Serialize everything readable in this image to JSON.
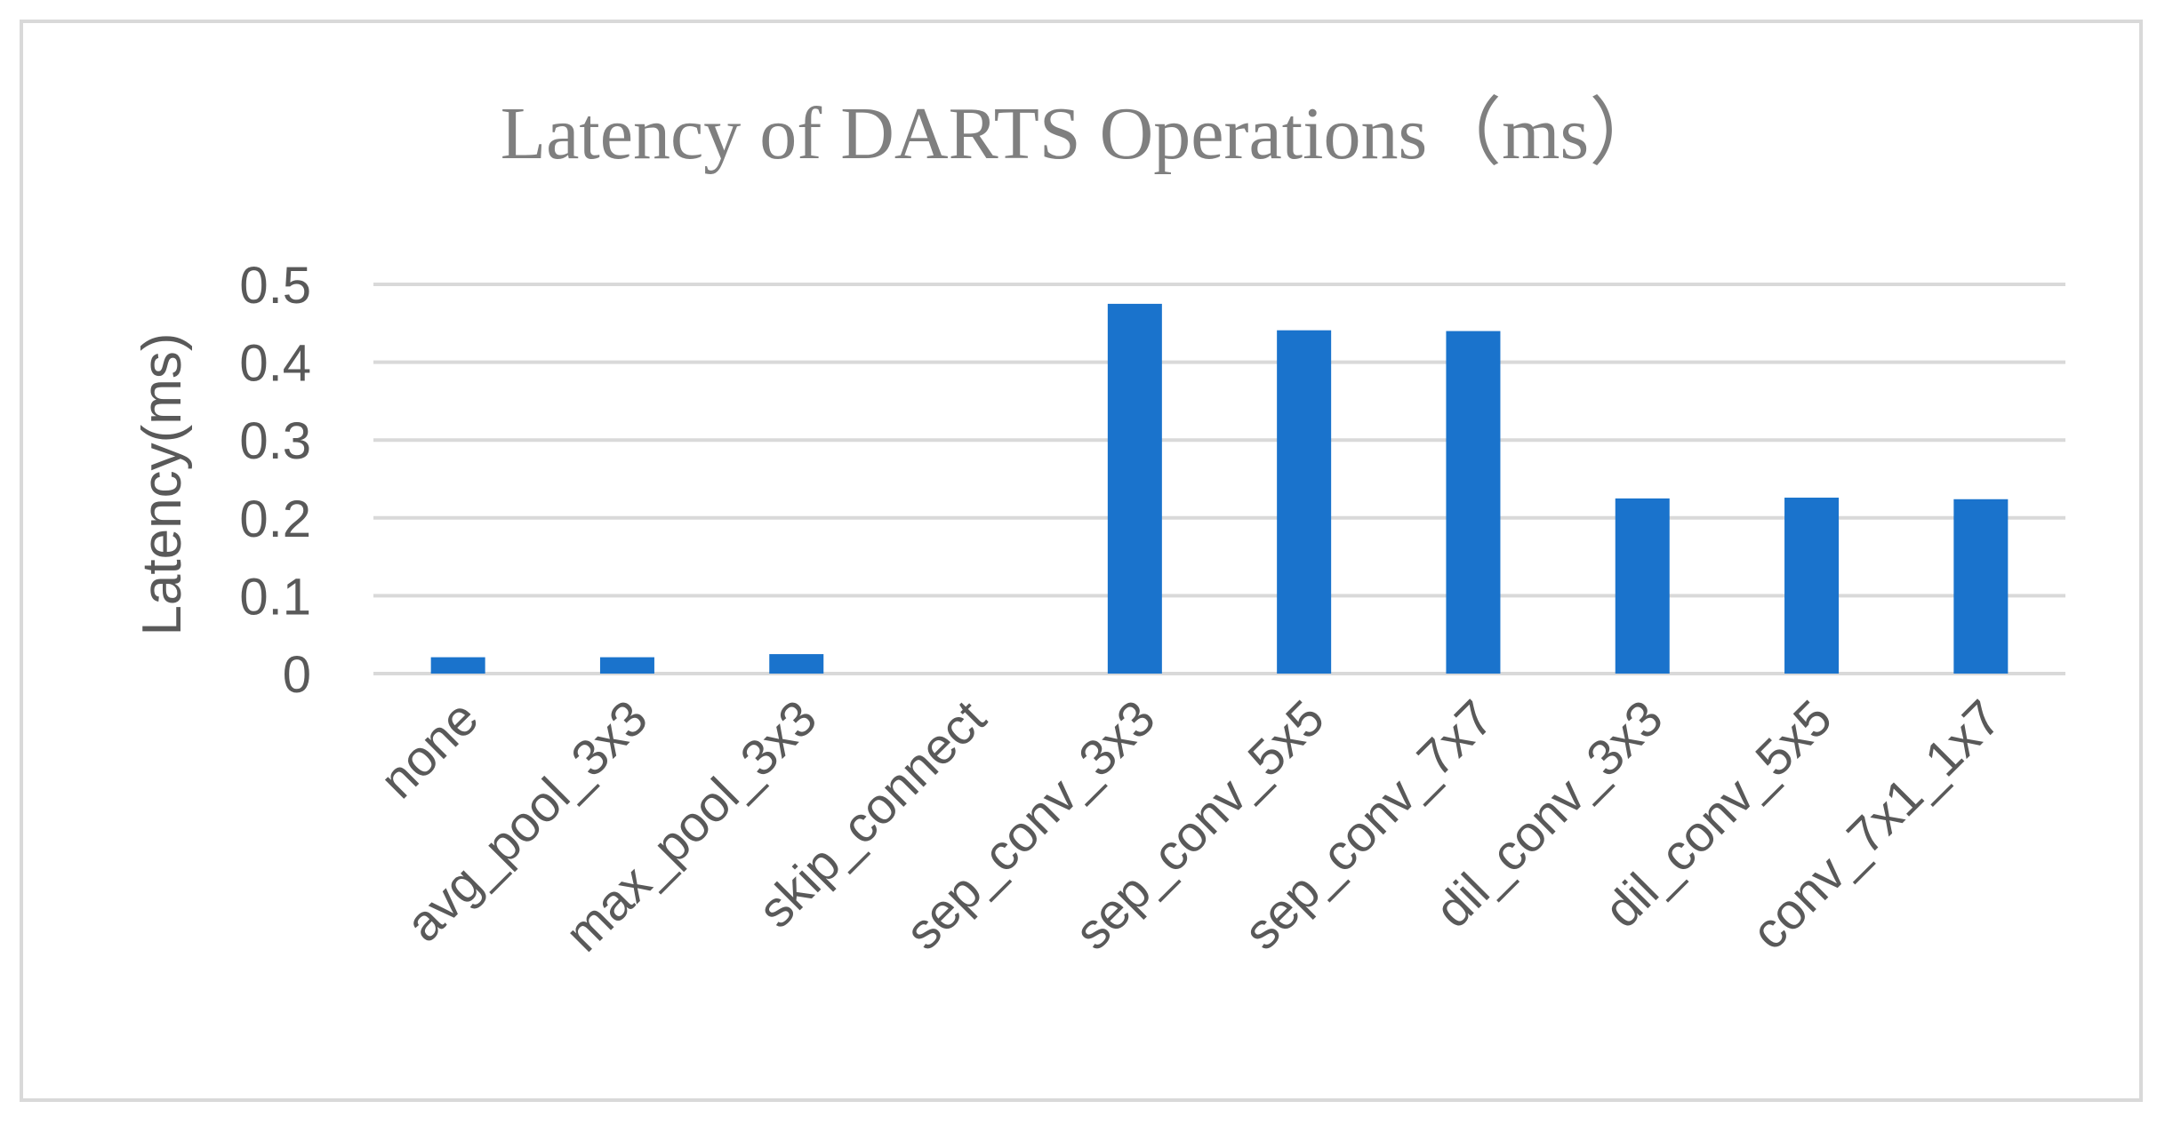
{
  "chart_data": {
    "type": "bar",
    "title": "Latency of DARTS Operations（ms）",
    "xlabel": "",
    "ylabel": "Latency(ms)",
    "ylim": [
      0,
      0.5
    ],
    "yticks": [
      "0",
      "0.1",
      "0.2",
      "0.3",
      "0.4",
      "0.5"
    ],
    "grid": true,
    "legend": "none",
    "categories": [
      "none",
      "avg_pool_3x3",
      "max_pool_3x3",
      "skip_connect",
      "sep_conv_3x3",
      "sep_conv_5x5",
      "sep_conv_7x7",
      "dil_conv_3x3",
      "dil_conv_5x5",
      "conv_7x1_1x7"
    ],
    "values": [
      0.021,
      0.021,
      0.025,
      0.0,
      0.475,
      0.441,
      0.44,
      0.225,
      0.226,
      0.224
    ],
    "colors": {
      "bar": "#1a73cc",
      "grid": "#d9d9d9",
      "text": "#595959",
      "title": "#7f7f7f"
    }
  }
}
